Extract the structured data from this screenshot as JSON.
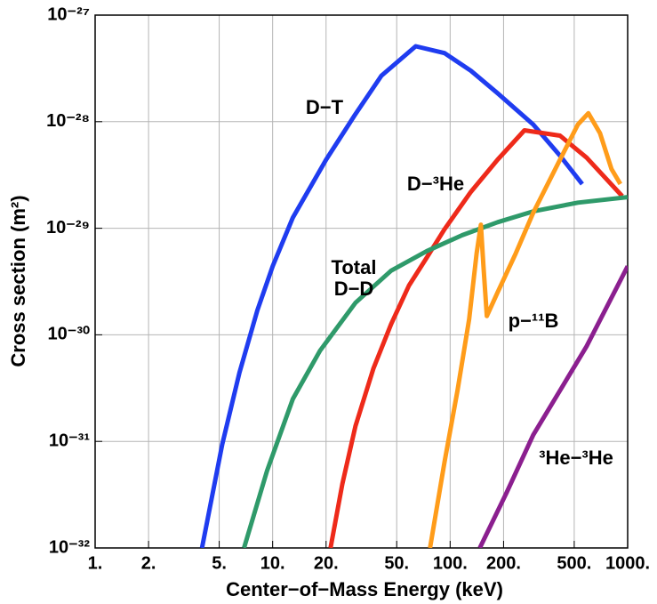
{
  "chart_data": {
    "type": "line",
    "xlabel": "Center−of−Mass Energy (keV)",
    "ylabel": "Cross section (m²)",
    "xscale": "log",
    "yscale": "log",
    "grid": true,
    "xlim": [
      1,
      1000
    ],
    "ylim": [
      1e-32,
      1e-27
    ],
    "xticks": [
      {
        "value": 1,
        "label": "1."
      },
      {
        "value": 2,
        "label": "2."
      },
      {
        "value": 5,
        "label": "5."
      },
      {
        "value": 10,
        "label": "10."
      },
      {
        "value": 20,
        "label": "20."
      },
      {
        "value": 50,
        "label": "50."
      },
      {
        "value": 100,
        "label": "100."
      },
      {
        "value": 200,
        "label": "200."
      },
      {
        "value": 500,
        "label": "500."
      },
      {
        "value": 1000,
        "label": "1000."
      }
    ],
    "yticks": [
      {
        "value": 1e-32,
        "label": "10⁻³²"
      },
      {
        "value": 1e-31,
        "label": "10⁻³¹"
      },
      {
        "value": 1e-30,
        "label": "10⁻³⁰"
      },
      {
        "value": 1e-29,
        "label": "10⁻²⁹"
      },
      {
        "value": 1e-28,
        "label": "10⁻²⁸"
      },
      {
        "value": 1e-27,
        "label": "10⁻²⁷"
      }
    ],
    "series": [
      {
        "color": "#1f3cf0",
        "x": [
          4,
          5.2,
          6.5,
          8.2,
          10,
          13,
          20,
          29,
          41,
          64,
          93,
          131,
          185,
          294,
          416,
          555
        ],
        "values": [
          1e-32,
          9.4e-32,
          4.4e-31,
          1.7e-30,
          4.4e-30,
          1.26e-29,
          4.4e-29,
          1.15e-28,
          2.7e-28,
          5.1e-28,
          4.4e-28,
          3e-28,
          1.85e-28,
          9.4e-29,
          4.8e-29,
          2.6e-29
        ]
      },
      {
        "color": "#ee2a1a",
        "x": [
          21.2,
          24.7,
          29.3,
          36.9,
          46.5,
          58.6,
          73.8,
          93,
          131,
          185,
          262,
          416,
          587,
          932
        ],
        "values": [
          1e-32,
          4e-32,
          1.4e-31,
          4.8e-31,
          1.26e-30,
          2.9e-30,
          5.3e-30,
          9.8e-30,
          2.2e-29,
          4.4e-29,
          8.3e-29,
          7.4e-29,
          4.6e-29,
          2e-29
        ]
      },
      {
        "color": "#2f9a6a",
        "x": [
          6.9,
          9.3,
          13,
          18.5,
          29.3,
          46.5,
          73.8,
          117,
          185,
          294,
          524,
          1000
        ],
        "values": [
          1e-32,
          5.3e-32,
          2.5e-31,
          7.1e-31,
          2e-30,
          4e-30,
          6.1e-30,
          8.6e-30,
          1.14e-29,
          1.44e-29,
          1.74e-29,
          1.96e-29
        ]
      },
      {
        "color": "#ff9c1a",
        "x": [
          77,
          93,
          110,
          128,
          141,
          149,
          154,
          161,
          185,
          234,
          294,
          416,
          524,
          601,
          699,
          811,
          910
        ],
        "values": [
          1e-32,
          6.4e-32,
          3e-31,
          1.4e-30,
          5.8e-30,
          1.08e-29,
          4.4e-30,
          1.5e-30,
          2.5e-30,
          5.8e-30,
          1.4e-29,
          4.4e-29,
          9.4e-29,
          1.2e-28,
          7.8e-29,
          3.6e-29,
          2.6e-29
        ]
      },
      {
        "color": "#8b1f8f",
        "x": [
          147,
          208,
          294,
          416,
          587,
          1000
        ],
        "values": [
          1e-32,
          3.3e-32,
          1.15e-31,
          3e-31,
          7.8e-31,
          4.4e-30
        ]
      }
    ],
    "annotations": [
      "D−T",
      "D−³He",
      "Total",
      "D−D",
      "p−¹¹B",
      "³He−³He"
    ]
  }
}
